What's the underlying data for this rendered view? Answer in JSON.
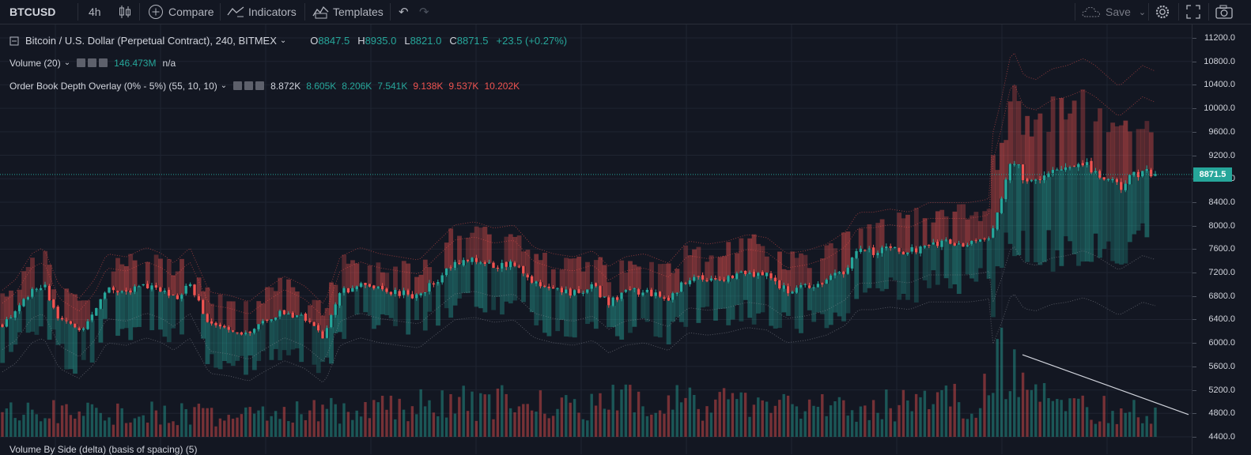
{
  "toolbar": {
    "symbol": "BTCUSD",
    "interval": "4h",
    "compare_label": "Compare",
    "indicators_label": "Indicators",
    "templates_label": "Templates",
    "save_label": "Save"
  },
  "legend": {
    "title": "Bitcoin / U.S. Dollar (Perpetual Contract), 240, BITMEX",
    "open_key": "O",
    "open": "8847.5",
    "high_key": "H",
    "high": "8935.0",
    "low_key": "L",
    "low": "8821.0",
    "close_key": "C",
    "close": "8871.5",
    "change": "+23.5 (+0.27%)",
    "volume_label": "Volume (20)",
    "volume_value": "146.473M",
    "volume_value2": "n/a",
    "depth_label": "Order Book Depth Overlay (0% - 5%) (55, 10, 10)",
    "depth_values": [
      {
        "v": "8.872K",
        "c": "#d1d4dc"
      },
      {
        "v": "8.605K",
        "c": "#26a69a"
      },
      {
        "v": "8.206K",
        "c": "#26a69a"
      },
      {
        "v": "7.541K",
        "c": "#26a69a"
      },
      {
        "v": "9.138K",
        "c": "#ef5350"
      },
      {
        "v": "9.537K",
        "c": "#ef5350"
      },
      {
        "v": "10.202K",
        "c": "#ef5350"
      }
    ]
  },
  "bottom_text": "Volume By Side (delta) (basis of spacing) (5)",
  "last_price_label": "8871.5",
  "colors": {
    "up": "#26a69a",
    "down": "#ef5350",
    "background": "#131722",
    "grid": "#1f2431",
    "trendline": "#d1d4dc"
  },
  "chart_data": {
    "type": "candlestick",
    "title": "Bitcoin / U.S. Dollar (Perpetual Contract), 240, BITMEX",
    "ylim": [
      4400,
      11600
    ],
    "yticks": [
      "11200.0",
      "10800.0",
      "10400.0",
      "10000.0",
      "9600.0",
      "9200.0",
      "8800.0",
      "8400.0",
      "8000.0",
      "7600.0",
      "7200.0",
      "6800.0",
      "6400.0",
      "6000.0",
      "5600.0",
      "5200.0",
      "4800.0",
      "4400.0"
    ],
    "last_price": 8871.5,
    "close_keypoints": [
      [
        0,
        6300
      ],
      [
        20,
        6500
      ],
      [
        40,
        6900
      ],
      [
        55,
        7000
      ],
      [
        75,
        6400
      ],
      [
        100,
        6200
      ],
      [
        120,
        6500
      ],
      [
        135,
        6900
      ],
      [
        160,
        6850
      ],
      [
        185,
        7000
      ],
      [
        205,
        6900
      ],
      [
        220,
        6750
      ],
      [
        240,
        7000
      ],
      [
        265,
        6300
      ],
      [
        290,
        6250
      ],
      [
        315,
        6150
      ],
      [
        330,
        6300
      ],
      [
        360,
        6550
      ],
      [
        385,
        6400
      ],
      [
        410,
        6100
      ],
      [
        430,
        6850
      ],
      [
        455,
        7000
      ],
      [
        480,
        6900
      ],
      [
        505,
        6850
      ],
      [
        530,
        6800
      ],
      [
        550,
        7050
      ],
      [
        575,
        7350
      ],
      [
        600,
        7400
      ],
      [
        625,
        7300
      ],
      [
        650,
        7350
      ],
      [
        675,
        7000
      ],
      [
        700,
        6900
      ],
      [
        725,
        6850
      ],
      [
        750,
        6950
      ],
      [
        770,
        6700
      ],
      [
        790,
        6850
      ],
      [
        815,
        6900
      ],
      [
        845,
        6750
      ],
      [
        870,
        7100
      ],
      [
        895,
        7050
      ],
      [
        920,
        7100
      ],
      [
        945,
        7200
      ],
      [
        970,
        7150
      ],
      [
        995,
        6900
      ],
      [
        1020,
        6950
      ],
      [
        1045,
        7050
      ],
      [
        1070,
        7250
      ],
      [
        1085,
        7550
      ],
      [
        1105,
        7550
      ],
      [
        1125,
        7600
      ],
      [
        1150,
        7550
      ],
      [
        1175,
        7700
      ],
      [
        1200,
        7700
      ],
      [
        1225,
        7700
      ],
      [
        1250,
        7750
      ],
      [
        1265,
        8400
      ],
      [
        1280,
        9200
      ],
      [
        1295,
        8800
      ],
      [
        1310,
        8750
      ],
      [
        1330,
        8900
      ],
      [
        1350,
        8950
      ],
      [
        1370,
        9050
      ],
      [
        1385,
        8950
      ],
      [
        1400,
        8800
      ],
      [
        1415,
        8650
      ],
      [
        1430,
        8800
      ],
      [
        1445,
        8950
      ],
      [
        1460,
        8870
      ]
    ],
    "volume_keypoints": [
      [
        0,
        35
      ],
      [
        100,
        40
      ],
      [
        300,
        30
      ],
      [
        540,
        50
      ],
      [
        860,
        52
      ],
      [
        980,
        48
      ],
      [
        1100,
        45
      ],
      [
        1240,
        55
      ],
      [
        1265,
        120
      ],
      [
        1280,
        105
      ],
      [
        1300,
        60
      ],
      [
        1350,
        42
      ],
      [
        1450,
        38
      ]
    ],
    "trendline": [
      [
        1293,
        5800
      ],
      [
        1503,
        4780
      ]
    ]
  }
}
